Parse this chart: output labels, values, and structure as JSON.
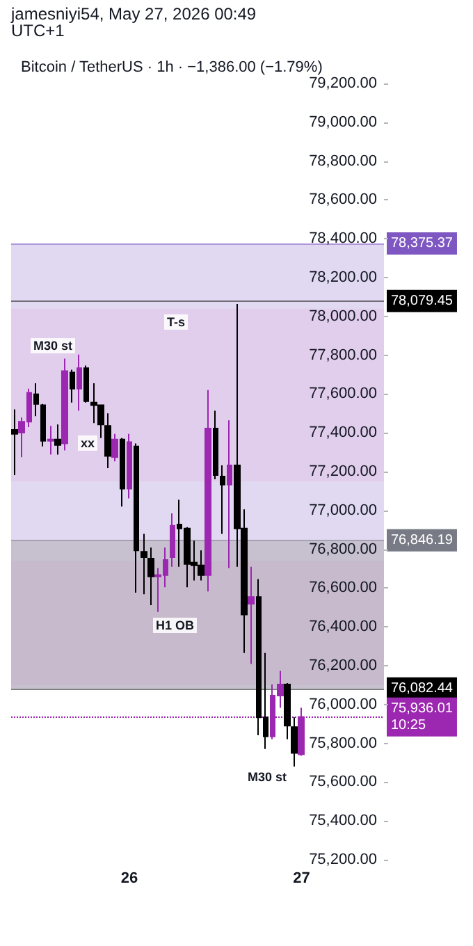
{
  "chart_data": {
    "type": "candlestick",
    "title": "Bitcoin / TetherUS · 1h · −1,386.00 (−1.79%)",
    "annotations": [
      "jamesniyi54, May 27, 2026 00:49 UTC+1",
      "M30 st",
      "xx",
      "T-s",
      "H1 OB",
      "M30 st"
    ],
    "categories": [
      null,
      null,
      null,
      null,
      null,
      null,
      null,
      null,
      null,
      null,
      null,
      null,
      null,
      null,
      null,
      null,
      "26",
      null,
      null,
      null,
      null,
      null,
      null,
      null,
      null,
      null,
      null,
      null,
      null,
      null,
      null,
      null,
      null,
      null,
      null,
      null,
      null,
      null,
      null,
      null,
      "27"
    ],
    "ohlc": [
      [
        77415,
        77521,
        77182,
        77394
      ],
      [
        77401,
        77479,
        77274,
        77457
      ],
      [
        77457,
        77627,
        77429,
        77606
      ],
      [
        77599,
        77655,
        77486,
        77549
      ],
      [
        77542,
        77549,
        77330,
        77359
      ],
      [
        77359,
        77436,
        77288,
        77366
      ],
      [
        77366,
        77443,
        77288,
        77337
      ],
      [
        77345,
        77782,
        77309,
        77718
      ],
      [
        77711,
        77725,
        77556,
        77627
      ],
      [
        77627,
        77803,
        77514,
        77733
      ],
      [
        77733,
        77747,
        77556,
        77563
      ],
      [
        77556,
        77655,
        77450,
        77542
      ],
      [
        77542,
        77542,
        77373,
        77443
      ],
      [
        77436,
        77500,
        77218,
        77281
      ],
      [
        77274,
        77394,
        77253,
        77366
      ],
      [
        77366,
        77373,
        77020,
        77112
      ],
      [
        77112,
        77394,
        77062,
        77352
      ],
      [
        77330,
        77345,
        76576,
        76794
      ],
      [
        76787,
        76879,
        76568,
        76759
      ],
      [
        76752,
        76808,
        76512,
        76660
      ],
      [
        76660,
        76703,
        76477,
        76667
      ],
      [
        76667,
        76808,
        76604,
        76745
      ],
      [
        76759,
        76985,
        76710,
        76921
      ],
      [
        76928,
        77055,
        76710,
        76907
      ],
      [
        76907,
        76914,
        76604,
        76724
      ],
      [
        76731,
        76844,
        76639,
        76717
      ],
      [
        76717,
        76794,
        76639,
        76667
      ],
      [
        76667,
        77620,
        76583,
        77422
      ],
      [
        77422,
        77514,
        77161,
        77182
      ],
      [
        77175,
        77232,
        76879,
        77133
      ],
      [
        77133,
        77464,
        76703,
        77232
      ],
      [
        77232,
        78064,
        76710,
        76907
      ],
      [
        76907,
        77006,
        76265,
        76463
      ],
      [
        76519,
        76710,
        76209,
        76554
      ],
      [
        76554,
        76646,
        75842,
        75934
      ],
      [
        75934,
        76265,
        75771,
        75835
      ],
      [
        75835,
        76103,
        75821,
        76046
      ],
      [
        76046,
        76173,
        75983,
        76103
      ],
      [
        76103,
        76110,
        75821,
        75891
      ],
      [
        75884,
        75934,
        75680,
        75750
      ],
      [
        75743,
        75983,
        75736,
        75936.01
      ]
    ],
    "colors": [
      "#000000",
      "#9c27b0",
      "#9c27b0",
      "#000000",
      "#000000",
      "#9c27b0",
      "#000000",
      "#9c27b0",
      "#000000",
      "#9c27b0",
      "#000000",
      "#000000",
      "#000000",
      "#000000",
      "#9c27b0",
      "#000000",
      "#9c27b0",
      "#000000",
      "#000000",
      "#000000",
      "#9c27b0",
      "#9c27b0",
      "#9c27b0",
      "#000000",
      "#000000",
      "#000000",
      "#000000",
      "#9c27b0",
      "#000000",
      "#000000",
      "#9c27b0",
      "#000000",
      "#000000",
      "#9c27b0",
      "#000000",
      "#000000",
      "#9c27b0",
      "#9c27b0",
      "#000000",
      "#000000",
      "#9c27b0"
    ],
    "ylim": [
      75200,
      79200
    ],
    "yticks": [
      {
        "value": 75200,
        "label": "75,200.00"
      },
      {
        "value": 75400,
        "label": "75,400.00"
      },
      {
        "value": 75600,
        "label": "75,600.00"
      },
      {
        "value": 75800,
        "label": "75,800.00"
      },
      {
        "value": 76000,
        "label": "76,000.00"
      },
      {
        "value": 76200,
        "label": "76,200.00"
      },
      {
        "value": 76400,
        "label": "76,400.00"
      },
      {
        "value": 76600,
        "label": "76,600.00"
      },
      {
        "value": 76800,
        "label": "76,800.00"
      },
      {
        "value": 77000,
        "label": "77,000.00"
      },
      {
        "value": 77200,
        "label": "77,200.00"
      },
      {
        "value": 77400,
        "label": "77,400.00"
      },
      {
        "value": 77600,
        "label": "77,600.00"
      },
      {
        "value": 77800,
        "label": "77,800.00"
      },
      {
        "value": 78000,
        "label": "78,000.00"
      },
      {
        "value": 78200,
        "label": "78,200.00"
      },
      {
        "value": 78400,
        "label": "78,400.00"
      },
      {
        "value": 78600,
        "label": "78,600.00"
      },
      {
        "value": 78800,
        "label": "78,800.00"
      },
      {
        "value": 79000,
        "label": "79,000.00"
      },
      {
        "value": 79200,
        "label": "79,200.00"
      }
    ],
    "grid": false,
    "ref_lines": [
      {
        "axis": "y",
        "value": 78375.37,
        "label": "78,375.37",
        "color": "#7e57c2",
        "line_style": "solid"
      },
      {
        "axis": "y",
        "value": 78079.45,
        "label": "78,079.45",
        "color": "#000000",
        "line_style": "solid"
      },
      {
        "axis": "y",
        "value": 76846.19,
        "label": "76,846.19",
        "color": "#787b86",
        "line_style": "solid"
      },
      {
        "axis": "y",
        "value": 76082.44,
        "label": "76,082.44",
        "color": "#000000",
        "line_style": "solid"
      },
      {
        "axis": "y",
        "value": 75936.01,
        "label": "75,936.01\n10:25",
        "color": "#9c27b0",
        "line_style": "dotted"
      }
    ],
    "bands": [
      {
        "axis": "y",
        "from": 76082.44,
        "to": 78375.37,
        "color": "#b39ddb"
      },
      {
        "axis": "y",
        "from": 77150,
        "to": 78040,
        "color": "#e1bee7"
      },
      {
        "axis": "y",
        "from": 76100,
        "to": 76740,
        "color": "#e1bee7"
      },
      {
        "axis": "y",
        "from": 76082.44,
        "to": 76846.19,
        "color": "#9e9e9e"
      }
    ]
  }
}
